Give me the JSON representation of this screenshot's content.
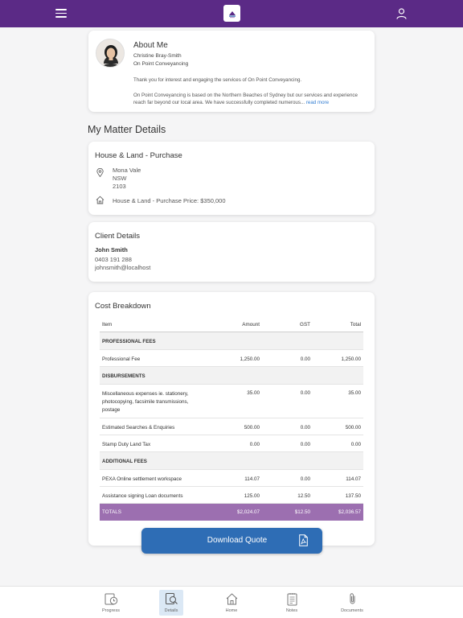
{
  "header": {
    "menu_icon": "hamburger-icon",
    "logo": "on-point-conveyancing-logo",
    "profile_icon": "user-icon"
  },
  "about": {
    "title": "About Me",
    "name": "Christine Bray-Smith",
    "company": "On Point Conveyancing",
    "line1": "Thank you for interest and engaging the services of On Point Conveyancing.",
    "line2": "On Point Conveyancing is based on the Northern Beaches of Sydney but our services and experience reach far beyond our local area.  We have successfully completed numerous... ",
    "read_more": "read more"
  },
  "matter": {
    "section_title": "My Matter Details",
    "title": "House & Land - Purchase",
    "address_suburb": "Mona Vale",
    "address_state": "NSW",
    "address_postcode": "2103",
    "price": "House & Land - Purchase Price: $350,000"
  },
  "client": {
    "title": "Client Details",
    "name": "John Smith",
    "phone": "0403 191 288",
    "email": "johnsmith@localhost"
  },
  "cost": {
    "title": "Cost Breakdown",
    "headers": {
      "item": "Item",
      "amount": "Amount",
      "gst": "GST",
      "total": "Total"
    },
    "groups": {
      "professional": "PROFESSIONAL FEES",
      "disbursements": "DISBURSEMENTS",
      "additional": "ADDITIONAL FEES"
    },
    "rows": [
      {
        "item": "Professional Fee",
        "amount": "1,250.00",
        "gst": "0.00",
        "total": "1,250.00"
      },
      {
        "item": "Miscellaneous expenses ie. stationery, photocopying, facsimile transmissions, postage",
        "amount": "35.00",
        "gst": "0.00",
        "total": "35.00"
      },
      {
        "item": "Estimated Searches & Enquiries",
        "amount": "500.00",
        "gst": "0.00",
        "total": "500.00"
      },
      {
        "item": "Stamp Duty Land Tax",
        "amount": "0.00",
        "gst": "0.00",
        "total": "0.00"
      },
      {
        "item": "PEXA Online settlement workspace",
        "amount": "114.07",
        "gst": "0.00",
        "total": "114.07"
      },
      {
        "item": "Assistance signing Loan documents",
        "amount": "125.00",
        "gst": "12.50",
        "total": "137.50"
      }
    ],
    "totals": {
      "label": "TOTALS",
      "amount": "$2,024.07",
      "gst": "$12.50",
      "total": "$2,036.57"
    }
  },
  "download": {
    "label": "Download Quote",
    "icon": "pdf-icon"
  },
  "tabs": [
    {
      "label": "Progress",
      "icon": "progress-clock-icon"
    },
    {
      "label": "Details",
      "icon": "details-search-icon",
      "active": true
    },
    {
      "label": "Home",
      "icon": "home-icon"
    },
    {
      "label": "Notes",
      "icon": "notes-icon"
    },
    {
      "label": "Documents",
      "icon": "paperclip-icon"
    }
  ],
  "colors": {
    "header": "#5b2a86",
    "totals_row": "#9c6fb0",
    "button": "#2e6db5",
    "link": "#2f7bd1"
  }
}
